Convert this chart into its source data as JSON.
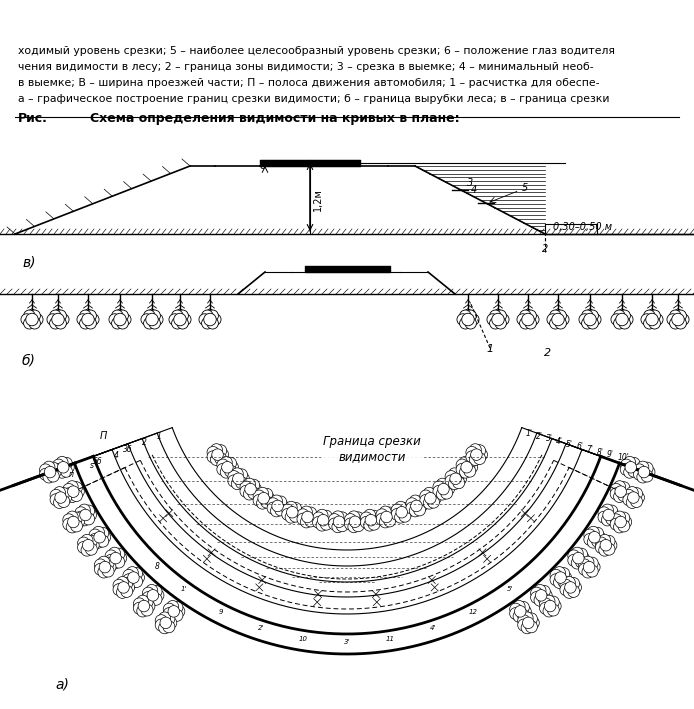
{
  "bg_color": "#ffffff",
  "caption_lines": [
    "а – графическое построение границ срезки видимости; б – граница вырубки леса; в – граница срезки",
    "в выемке; В – ширина проезжей части; П – полоса движения автомобиля; 1 – расчистка для обеспе-",
    "чения видимости в лесу; 2 – граница зоны видимости; 3 – срезка в выемке; 4 – минимальный необ-",
    "ходимый уровень срезки; 5 – наиболее целесообразный уровень срезки; 6 – положение глаз водителя"
  ]
}
